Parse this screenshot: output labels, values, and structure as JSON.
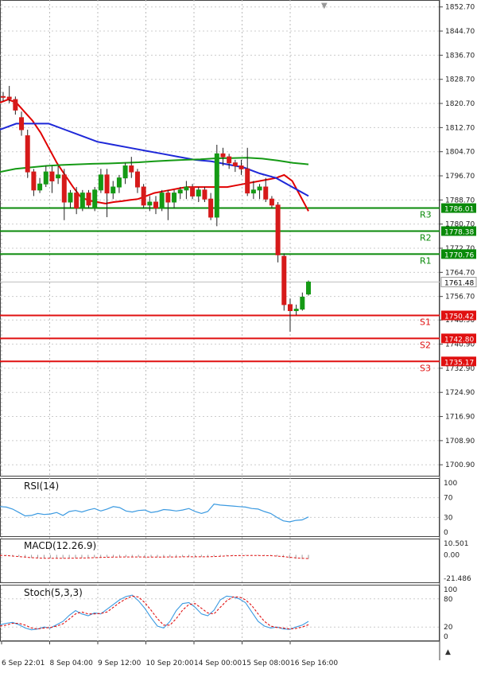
{
  "chart_data": [
    {
      "type": "candlestick",
      "title": "",
      "ylim": [
        1697.0,
        1855.0
      ],
      "y_ticks": [
        "1852.70",
        "1844.70",
        "1836.70",
        "1828.70",
        "1820.70",
        "1812.70",
        "1804.70",
        "1796.70",
        "1788.70",
        "1780.70",
        "1772.70",
        "1764.70",
        "1756.70",
        "1748.90",
        "1740.90",
        "1732.90",
        "1724.90",
        "1716.90",
        "1708.90",
        "1700.90"
      ],
      "current_price": {
        "label": "1761.48",
        "value": 1761.48
      },
      "candles": [
        {
          "o": 1823.0,
          "h": 1824.5,
          "l": 1821.5,
          "c": 1822.8
        },
        {
          "o": 1822.8,
          "h": 1826.5,
          "l": 1820.8,
          "c": 1822.2
        },
        {
          "o": 1822.0,
          "h": 1823.0,
          "l": 1817.0,
          "c": 1818.5
        },
        {
          "o": 1816.0,
          "h": 1818.0,
          "l": 1810.0,
          "c": 1812.0
        },
        {
          "o": 1810.0,
          "h": 1812.0,
          "l": 1796.0,
          "c": 1798.0
        },
        {
          "o": 1798.0,
          "h": 1799.0,
          "l": 1790.0,
          "c": 1792.0
        },
        {
          "o": 1792.0,
          "h": 1796.0,
          "l": 1791.0,
          "c": 1794.0
        },
        {
          "o": 1794.0,
          "h": 1800.0,
          "l": 1793.0,
          "c": 1798.0
        },
        {
          "o": 1798.0,
          "h": 1800.0,
          "l": 1791.0,
          "c": 1795.0
        },
        {
          "o": 1796.0,
          "h": 1800.0,
          "l": 1794.0,
          "c": 1797.0
        },
        {
          "o": 1797.0,
          "h": 1799.0,
          "l": 1782.0,
          "c": 1788.0
        },
        {
          "o": 1788.0,
          "h": 1792.0,
          "l": 1786.0,
          "c": 1791.0
        },
        {
          "o": 1791.0,
          "h": 1793.0,
          "l": 1784.0,
          "c": 1786.0
        },
        {
          "o": 1786.0,
          "h": 1792.0,
          "l": 1785.0,
          "c": 1791.0
        },
        {
          "o": 1791.0,
          "h": 1792.0,
          "l": 1786.0,
          "c": 1787.0
        },
        {
          "o": 1786.0,
          "h": 1793.0,
          "l": 1785.0,
          "c": 1792.0
        },
        {
          "o": 1792.0,
          "h": 1799.0,
          "l": 1791.0,
          "c": 1797.0
        },
        {
          "o": 1797.0,
          "h": 1799.0,
          "l": 1783.0,
          "c": 1791.0
        },
        {
          "o": 1791.0,
          "h": 1795.0,
          "l": 1789.0,
          "c": 1793.0
        },
        {
          "o": 1793.0,
          "h": 1797.0,
          "l": 1791.0,
          "c": 1796.0
        },
        {
          "o": 1796.0,
          "h": 1801.0,
          "l": 1794.0,
          "c": 1800.0
        },
        {
          "o": 1800.0,
          "h": 1803.0,
          "l": 1796.0,
          "c": 1798.0
        },
        {
          "o": 1798.0,
          "h": 1799.0,
          "l": 1791.0,
          "c": 1793.0
        },
        {
          "o": 1793.0,
          "h": 1794.0,
          "l": 1786.0,
          "c": 1787.0
        },
        {
          "o": 1787.0,
          "h": 1790.0,
          "l": 1785.0,
          "c": 1788.0
        },
        {
          "o": 1788.0,
          "h": 1790.0,
          "l": 1784.0,
          "c": 1786.0
        },
        {
          "o": 1786.0,
          "h": 1792.0,
          "l": 1785.0,
          "c": 1791.0
        },
        {
          "o": 1791.0,
          "h": 1792.0,
          "l": 1782.0,
          "c": 1788.0
        },
        {
          "o": 1788.0,
          "h": 1792.0,
          "l": 1786.0,
          "c": 1791.0
        },
        {
          "o": 1791.0,
          "h": 1793.0,
          "l": 1789.0,
          "c": 1792.0
        },
        {
          "o": 1792.0,
          "h": 1795.0,
          "l": 1789.0,
          "c": 1793.0
        },
        {
          "o": 1793.0,
          "h": 1794.0,
          "l": 1789.0,
          "c": 1790.0
        },
        {
          "o": 1790.0,
          "h": 1793.0,
          "l": 1788.0,
          "c": 1792.0
        },
        {
          "o": 1792.0,
          "h": 1793.0,
          "l": 1788.0,
          "c": 1789.0
        },
        {
          "o": 1789.0,
          "h": 1791.0,
          "l": 1782.0,
          "c": 1783.0
        },
        {
          "o": 1783.0,
          "h": 1807.0,
          "l": 1780.0,
          "c": 1804.0
        },
        {
          "o": 1804.0,
          "h": 1806.0,
          "l": 1800.0,
          "c": 1803.0
        },
        {
          "o": 1803.0,
          "h": 1804.0,
          "l": 1799.0,
          "c": 1801.0
        },
        {
          "o": 1801.0,
          "h": 1802.0,
          "l": 1798.0,
          "c": 1800.0
        },
        {
          "o": 1800.0,
          "h": 1802.0,
          "l": 1797.0,
          "c": 1799.0
        },
        {
          "o": 1799.0,
          "h": 1806.0,
          "l": 1790.0,
          "c": 1791.0
        },
        {
          "o": 1791.0,
          "h": 1795.0,
          "l": 1789.0,
          "c": 1792.0
        },
        {
          "o": 1792.0,
          "h": 1794.0,
          "l": 1789.0,
          "c": 1793.0
        },
        {
          "o": 1793.0,
          "h": 1796.0,
          "l": 1788.0,
          "c": 1789.0
        },
        {
          "o": 1789.0,
          "h": 1790.0,
          "l": 1786.0,
          "c": 1787.0
        },
        {
          "o": 1787.0,
          "h": 1788.0,
          "l": 1768.0,
          "c": 1770.5
        },
        {
          "o": 1770.0,
          "h": 1771.0,
          "l": 1752.0,
          "c": 1754.0
        },
        {
          "o": 1754.0,
          "h": 1756.0,
          "l": 1745.0,
          "c": 1752.0
        },
        {
          "o": 1752.0,
          "h": 1754.0,
          "l": 1750.5,
          "c": 1752.5
        },
        {
          "o": 1752.5,
          "h": 1758.0,
          "l": 1752.0,
          "c": 1756.5
        },
        {
          "o": 1757.5,
          "h": 1762.0,
          "l": 1757.0,
          "c": 1761.5
        }
      ],
      "moving_averages": [
        {
          "color": "#e00000",
          "values": [
            1821,
            1822,
            1821,
            1818,
            1815,
            1811,
            1806,
            1801,
            1797,
            1793,
            1789.5,
            1788.5,
            1788,
            1787.5,
            1788,
            1788.3,
            1788.7,
            1789,
            1790,
            1791,
            1791.5,
            1792,
            1792.5,
            1793,
            1793,
            1793,
            1793,
            1793,
            1793,
            1793.5,
            1794,
            1794.5,
            1795,
            1795.5,
            1796,
            1797,
            1795,
            1790,
            1785
          ]
        },
        {
          "color": "#1e28d8",
          "values": [
            1812,
            1814,
            1814,
            1814,
            1812,
            1810,
            1808,
            1807,
            1806,
            1805,
            1804,
            1803,
            1802,
            1801.5,
            1800.5,
            1799.5,
            1797.5,
            1796,
            1793,
            1790
          ]
        },
        {
          "color": "#159a15",
          "values": [
            1798,
            1799,
            1799.5,
            1800,
            1800.3,
            1800.5,
            1800.7,
            1800.8,
            1801,
            1801.2,
            1801.5,
            1801.8,
            1802,
            1802.2,
            1802.5,
            1802.6,
            1802.7,
            1802.4,
            1801.8,
            1801,
            1800.5
          ]
        }
      ],
      "levels": [
        {
          "name": "R3",
          "label": "1786.01",
          "value": 1786.01,
          "color": "#0a8a0a"
        },
        {
          "name": "R2",
          "label": "1778.38",
          "value": 1778.38,
          "color": "#0a8a0a"
        },
        {
          "name": "R1",
          "label": "1770.76",
          "value": 1770.76,
          "color": "#0a8a0a"
        },
        {
          "name": "S1",
          "label": "1750.42",
          "value": 1750.42,
          "color": "#e01010"
        },
        {
          "name": "S2",
          "label": "1742.80",
          "value": 1742.8,
          "color": "#e01010"
        },
        {
          "name": "S3",
          "label": "1735.17",
          "value": 1735.17,
          "color": "#e01010"
        }
      ]
    },
    {
      "type": "line",
      "title": "RSI(14)",
      "y_ticks": [
        "100",
        "70",
        "30",
        "0"
      ],
      "ylim": [
        0,
        100
      ],
      "series": [
        {
          "color": "#3b9ae1",
          "values": [
            52,
            51,
            47,
            40,
            33,
            34,
            38,
            36,
            37,
            40,
            34,
            42,
            44,
            41,
            45,
            48,
            43,
            47,
            52,
            50,
            43,
            41,
            44,
            45,
            40,
            42,
            46,
            45,
            43,
            45,
            48,
            42,
            38,
            42,
            57,
            55,
            54,
            53,
            52,
            51,
            48,
            47,
            42,
            38,
            30,
            23,
            21,
            24,
            25,
            31
          ]
        }
      ]
    },
    {
      "type": "bar",
      "title": "MACD(12.26.9)",
      "y_ticks": [
        "10.501",
        "0.00",
        "-21.486"
      ],
      "ylim": [
        -21.486,
        10.501
      ],
      "values": [
        -0.3,
        -0.5,
        -0.9,
        -1.5,
        -2.2,
        -2.8,
        -3.0,
        -3.1,
        -3.1,
        -3.0,
        -3.2,
        -3.1,
        -2.9,
        -2.8,
        -2.7,
        -2.5,
        -2.2,
        -2.1,
        -2.0,
        -1.9,
        -1.8,
        -1.8,
        -1.9,
        -2.0,
        -2.1,
        -2.1,
        -2.0,
        -2.0,
        -1.9,
        -1.8,
        -1.7,
        -1.7,
        -1.8,
        -1.9,
        -1.4,
        -1.0,
        -0.8,
        -0.6,
        -0.5,
        -0.5,
        -0.6,
        -0.6,
        -0.7,
        -0.8,
        -1.3,
        -2.2,
        -3.1,
        -3.6,
        -3.8,
        -3.6
      ],
      "signal": {
        "color": "#e01010",
        "values": [
          -0.5,
          -0.7,
          -1.1,
          -1.6,
          -2.1,
          -2.6,
          -2.9,
          -3.1,
          -3.2,
          -3.2,
          -3.1,
          -3.1,
          -3.0,
          -2.9,
          -2.8,
          -2.6,
          -2.4,
          -2.2,
          -2.1,
          -2.0,
          -1.9,
          -1.9,
          -1.9,
          -2.0,
          -2.0,
          -2.0,
          -2.0,
          -1.9,
          -1.9,
          -1.8,
          -1.8,
          -1.8,
          -1.8,
          -1.8,
          -1.6,
          -1.3,
          -1.0,
          -0.8,
          -0.7,
          -0.6,
          -0.6,
          -0.6,
          -0.7,
          -0.8,
          -1.1,
          -1.6,
          -2.2,
          -2.8,
          -3.2,
          -3.4
        ]
      }
    },
    {
      "type": "line",
      "title": "Stoch(5,3,3)",
      "y_ticks": [
        "100",
        "80",
        "20",
        "0"
      ],
      "ylim": [
        0,
        100
      ],
      "series": [
        {
          "color": "#3b9ae1",
          "values": [
            25,
            28,
            30,
            25,
            18,
            14,
            16,
            20,
            18,
            25,
            32,
            45,
            55,
            48,
            44,
            50,
            48,
            58,
            68,
            78,
            85,
            88,
            76,
            60,
            40,
            22,
            18,
            32,
            55,
            70,
            72,
            62,
            48,
            44,
            56,
            78,
            86,
            84,
            80,
            72,
            52,
            32,
            22,
            18,
            20,
            16,
            15,
            20,
            24,
            32
          ]
        },
        {
          "color": "#e01010",
          "values": [
            22,
            24,
            28,
            28,
            24,
            18,
            16,
            18,
            19,
            22,
            27,
            37,
            48,
            52,
            48,
            48,
            49,
            52,
            62,
            72,
            80,
            86,
            84,
            72,
            56,
            38,
            24,
            24,
            38,
            56,
            68,
            70,
            60,
            50,
            48,
            62,
            76,
            84,
            84,
            78,
            66,
            48,
            32,
            22,
            19,
            18,
            16,
            17,
            20,
            25
          ]
        }
      ]
    }
  ],
  "x_axis": {
    "labels": [
      "6 Sep 22:01",
      "8 Sep 04:00",
      "9 Sep 12:00",
      "10 Sep 20:00",
      "14 Sep 00:00",
      "15 Sep 08:00",
      "16 Sep 16:00"
    ]
  }
}
